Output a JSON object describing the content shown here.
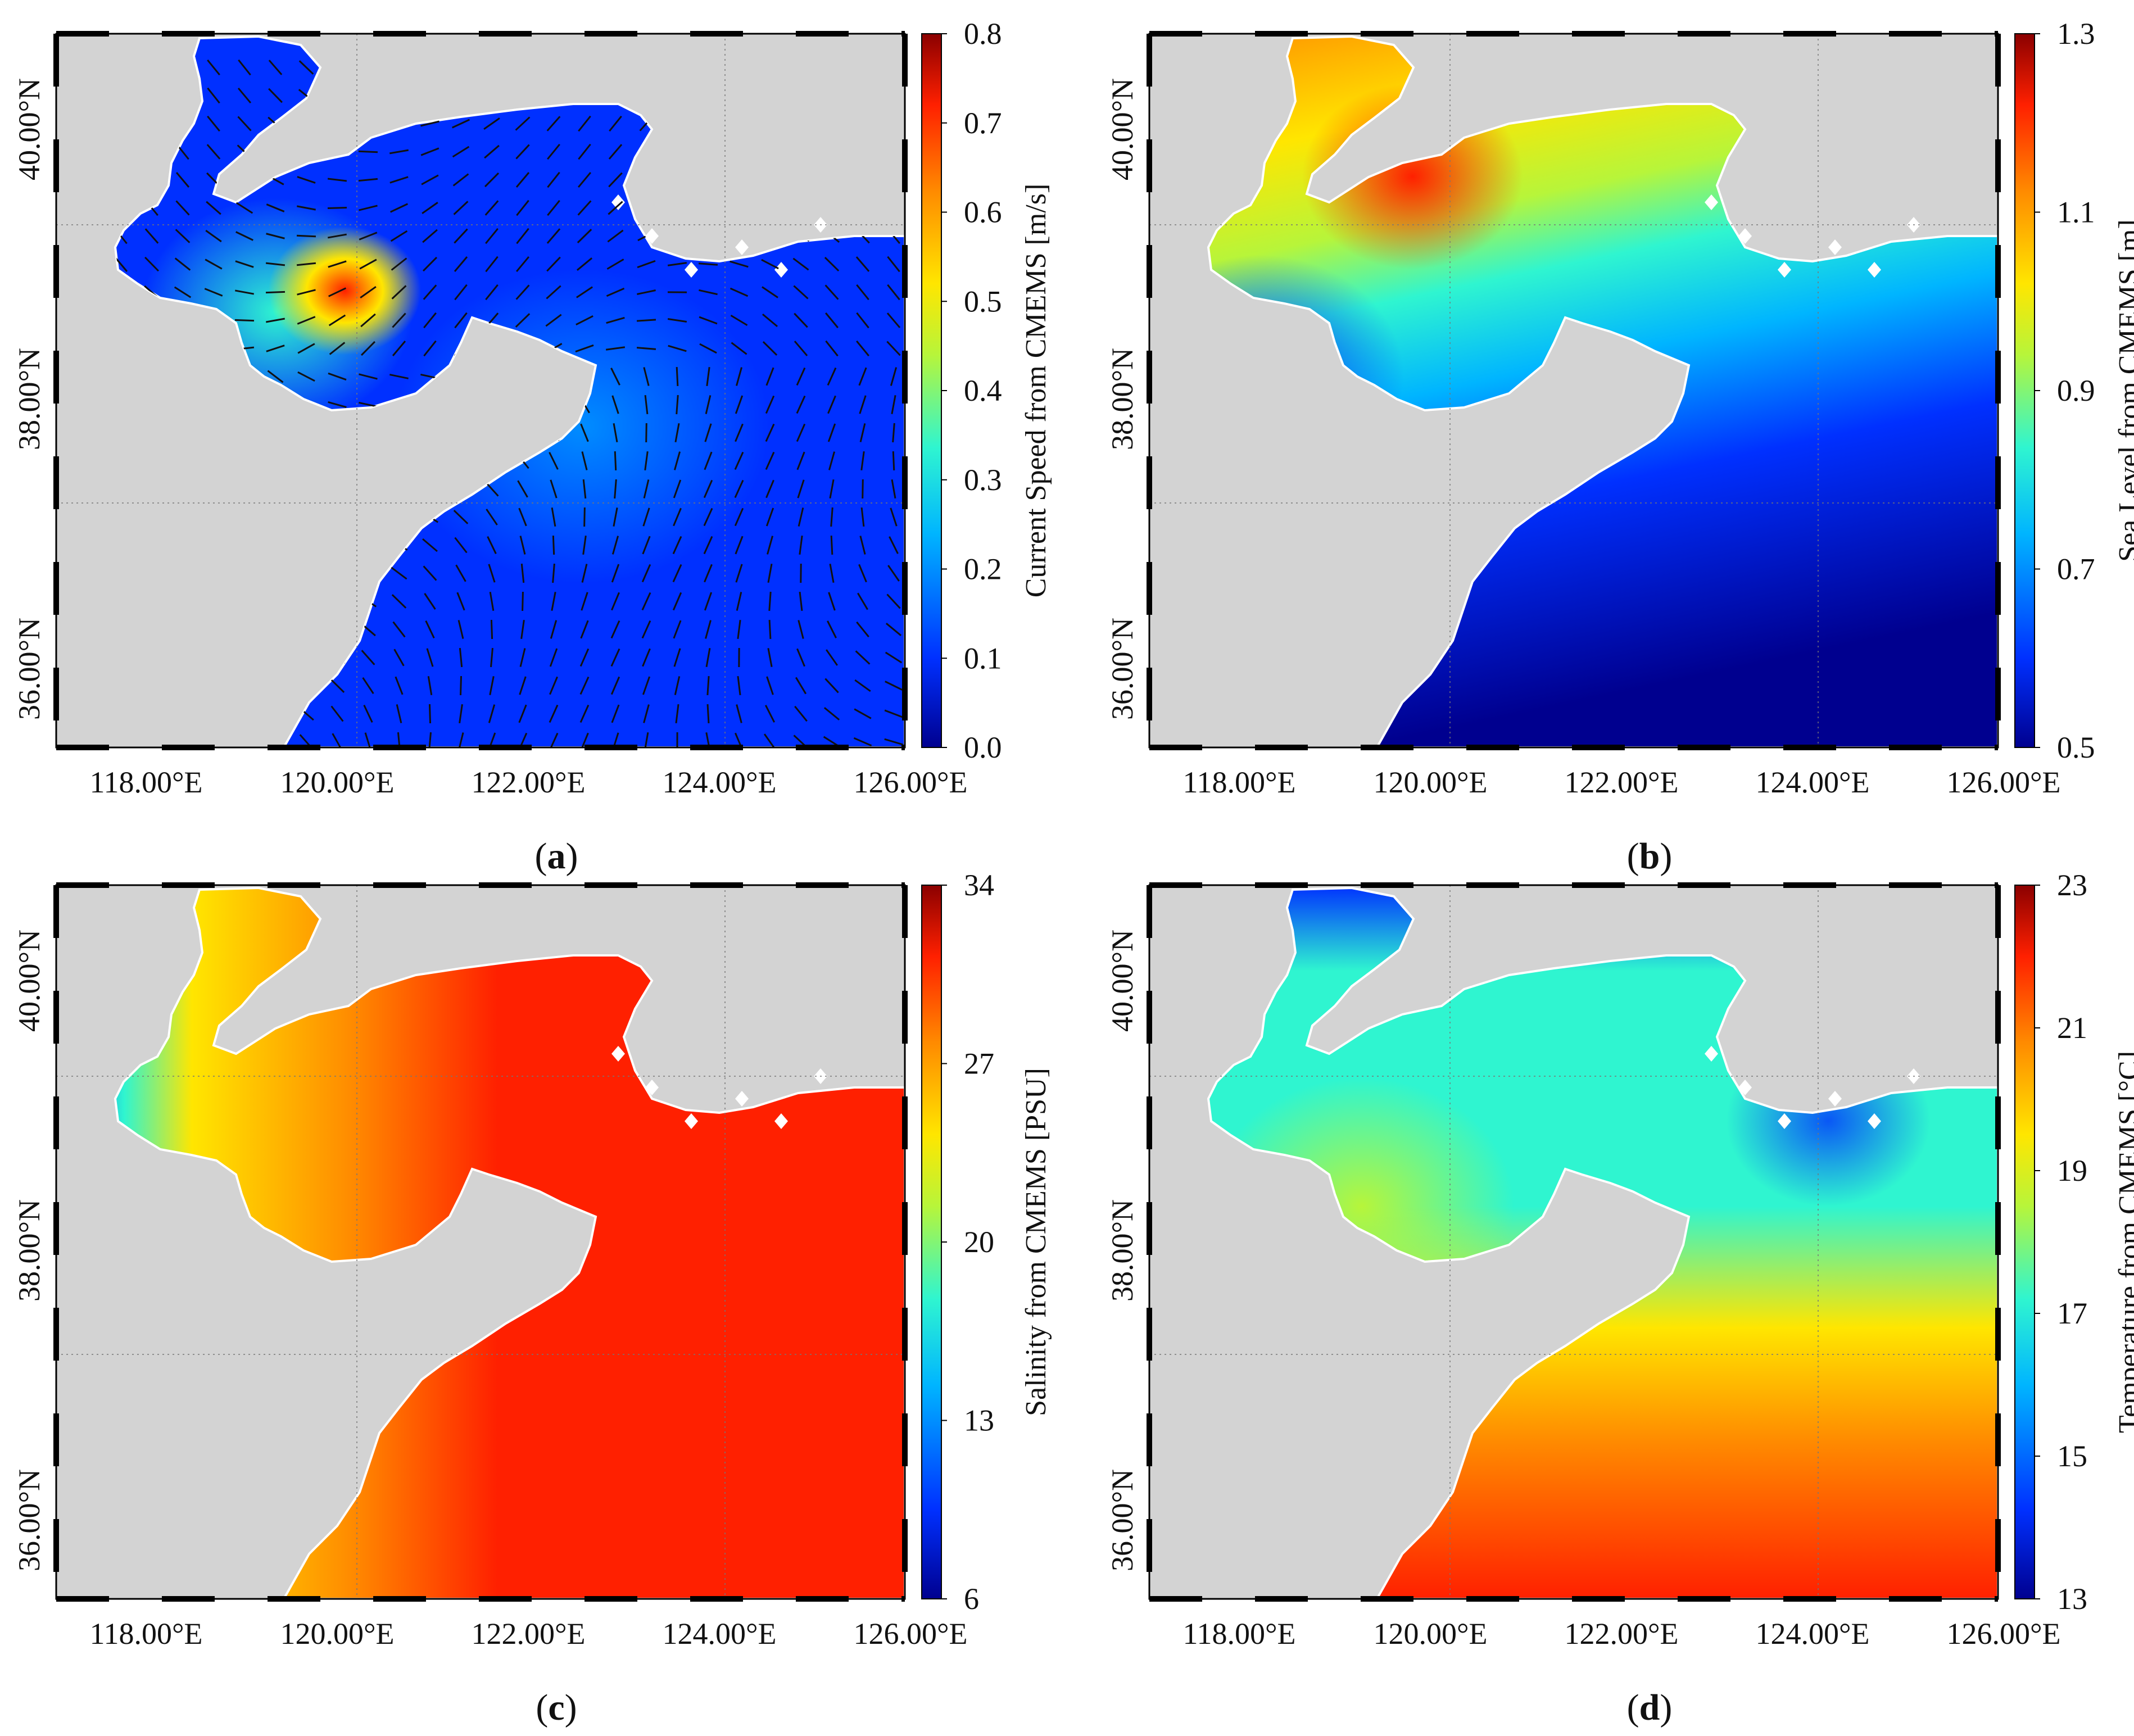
{
  "figure": {
    "colormap": [
      "#00008f",
      "#0030ff",
      "#00b5ff",
      "#2ff5d0",
      "#b7f53a",
      "#ffe600",
      "#ff8a00",
      "#ff2000",
      "#8b0000"
    ],
    "land_color": "#d3d3d3",
    "frame_color": "#000000",
    "x_ticks": [
      "118.00°E",
      "120.00°E",
      "122.00°E",
      "124.00°E",
      "126.00°E"
    ],
    "y_ticks": [
      "36.00°N",
      "38.00°N",
      "40.00°N"
    ],
    "panels": [
      {
        "id": "a",
        "caption": "(a)",
        "caption_letter": "a",
        "colorbar_label": "Current Speed from CMEMS [m/s]",
        "colorbar_ticks": [
          "0.0",
          "0.1",
          "0.2",
          "0.3",
          "0.4",
          "0.5",
          "0.6",
          "0.7",
          "0.8"
        ],
        "vectors": true
      },
      {
        "id": "b",
        "caption": "(b)",
        "caption_letter": "b",
        "colorbar_label": "Sea Level from CMEMS [m]",
        "colorbar_ticks": [
          "0.5",
          "0.7",
          "0.9",
          "1.1",
          "1.3"
        ],
        "vectors": false
      },
      {
        "id": "c",
        "caption": "(c)",
        "caption_letter": "c",
        "colorbar_label": "Salinity from CMEMS [PSU]",
        "colorbar_ticks": [
          "6",
          "13",
          "20",
          "27",
          "34"
        ],
        "vectors": false
      },
      {
        "id": "d",
        "caption": "(d)",
        "caption_letter": "d",
        "colorbar_label": "Temperature from CMEMS [°C]",
        "colorbar_ticks": [
          "13",
          "15",
          "17",
          "19",
          "21",
          "23"
        ],
        "vectors": false
      }
    ]
  }
}
